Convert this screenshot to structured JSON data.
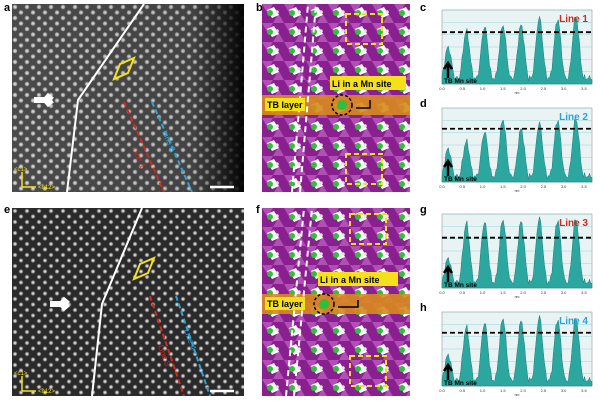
{
  "figure": {
    "panels": {
      "a": "a",
      "b": "b",
      "c": "c",
      "d": "d",
      "e": "e",
      "f": "f",
      "g": "g",
      "h": "h"
    },
    "stem_top": {
      "line_a_label": "Line 1",
      "line_b_label": "Line 2",
      "axis_y_label": "<ć1>",
      "axis_x_label": "<ħ12>"
    },
    "stem_bottom": {
      "line_a_label": "Line 3",
      "line_b_label": "Line 4",
      "axis_y_label": "<ć1>",
      "axis_x_label": "<ħ12>"
    },
    "struct_top": {
      "tb_layer_label": "TB layer",
      "li_label": "Li in a Mn site"
    },
    "struct_bottom": {
      "tb_layer_label": "TB layer",
      "li_label": "Li in a Mn site"
    },
    "colors": {
      "line1": "#d8261c",
      "line2": "#2aa4d8",
      "fill": "#2ba7a0",
      "tb": "#d98a1e",
      "purple": "#8a1f8f",
      "yellow": "#f5e11a"
    }
  },
  "chart_data": [
    {
      "type": "area",
      "panel": "c",
      "title": "Line 1",
      "title_color": "#d8261c",
      "annotation": "TB Mn site",
      "x_ticks": [
        "0.0",
        "0.5",
        "1.0",
        "1.5",
        "2.0",
        "2.5",
        "3.0",
        "3.5"
      ],
      "xlabel": "nm",
      "y_ticks": [
        "",
        "",
        "",
        "",
        "",
        "",
        ""
      ],
      "xlim": [
        0,
        3.7
      ],
      "ylim": [
        0,
        1
      ],
      "threshold": 0.7,
      "peaks": [
        [
          0.15,
          0.5
        ],
        [
          0.6,
          0.72
        ],
        [
          1.05,
          0.78
        ],
        [
          1.5,
          0.8
        ],
        [
          1.95,
          0.8
        ],
        [
          2.4,
          0.9
        ],
        [
          2.85,
          0.88
        ],
        [
          3.3,
          0.92
        ]
      ]
    },
    {
      "type": "area",
      "panel": "d",
      "title": "Line 2",
      "title_color": "#2aa4d8",
      "annotation": "TB Mn site",
      "x_ticks": [
        "0.0",
        "0.5",
        "1.0",
        "1.5",
        "2.0",
        "2.5",
        "3.0",
        "3.5"
      ],
      "xlabel": "nm",
      "y_ticks": [
        "",
        "",
        "",
        "",
        "",
        "",
        ""
      ],
      "xlim": [
        0,
        3.7
      ],
      "ylim": [
        0,
        1
      ],
      "threshold": 0.72,
      "peaks": [
        [
          0.15,
          0.45
        ],
        [
          0.6,
          0.55
        ],
        [
          1.05,
          0.68
        ],
        [
          1.5,
          0.85
        ],
        [
          1.95,
          0.72
        ],
        [
          2.4,
          0.8
        ],
        [
          2.85,
          0.84
        ],
        [
          3.3,
          0.86
        ]
      ]
    },
    {
      "type": "area",
      "panel": "g",
      "title": "Line 3",
      "title_color": "#d8261c",
      "annotation": "TB Mn site",
      "x_ticks": [
        "0.0",
        "0.5",
        "1.0",
        "1.5",
        "2.0",
        "2.5",
        "3.0",
        "3.5"
      ],
      "xlabel": "nm",
      "y_ticks": [
        "",
        "",
        "",
        "",
        "",
        "",
        ""
      ],
      "xlim": [
        0,
        3.7
      ],
      "ylim": [
        0,
        1
      ],
      "threshold": 0.68,
      "peaks": [
        [
          0.15,
          0.4
        ],
        [
          0.6,
          0.88
        ],
        [
          1.05,
          0.9
        ],
        [
          1.5,
          0.93
        ],
        [
          1.95,
          0.9
        ],
        [
          2.4,
          0.95
        ],
        [
          2.85,
          0.92
        ],
        [
          3.3,
          0.94
        ]
      ]
    },
    {
      "type": "area",
      "panel": "h",
      "title": "Line 4",
      "title_color": "#2aa4d8",
      "annotation": "TB Mn site",
      "x_ticks": [
        "0.0",
        "0.5",
        "1.0",
        "1.5",
        "2.0",
        "2.5",
        "3.0",
        "3.5"
      ],
      "xlabel": "nm",
      "y_ticks": [
        "",
        "",
        "",
        "",
        "",
        "",
        ""
      ],
      "xlim": [
        0,
        3.7
      ],
      "ylim": [
        0,
        1
      ],
      "threshold": 0.72,
      "peaks": [
        [
          0.15,
          0.42
        ],
        [
          0.6,
          0.8
        ],
        [
          1.05,
          0.86
        ],
        [
          1.5,
          0.92
        ],
        [
          1.95,
          0.88
        ],
        [
          2.4,
          0.94
        ],
        [
          2.85,
          0.9
        ],
        [
          3.3,
          0.93
        ]
      ]
    }
  ]
}
